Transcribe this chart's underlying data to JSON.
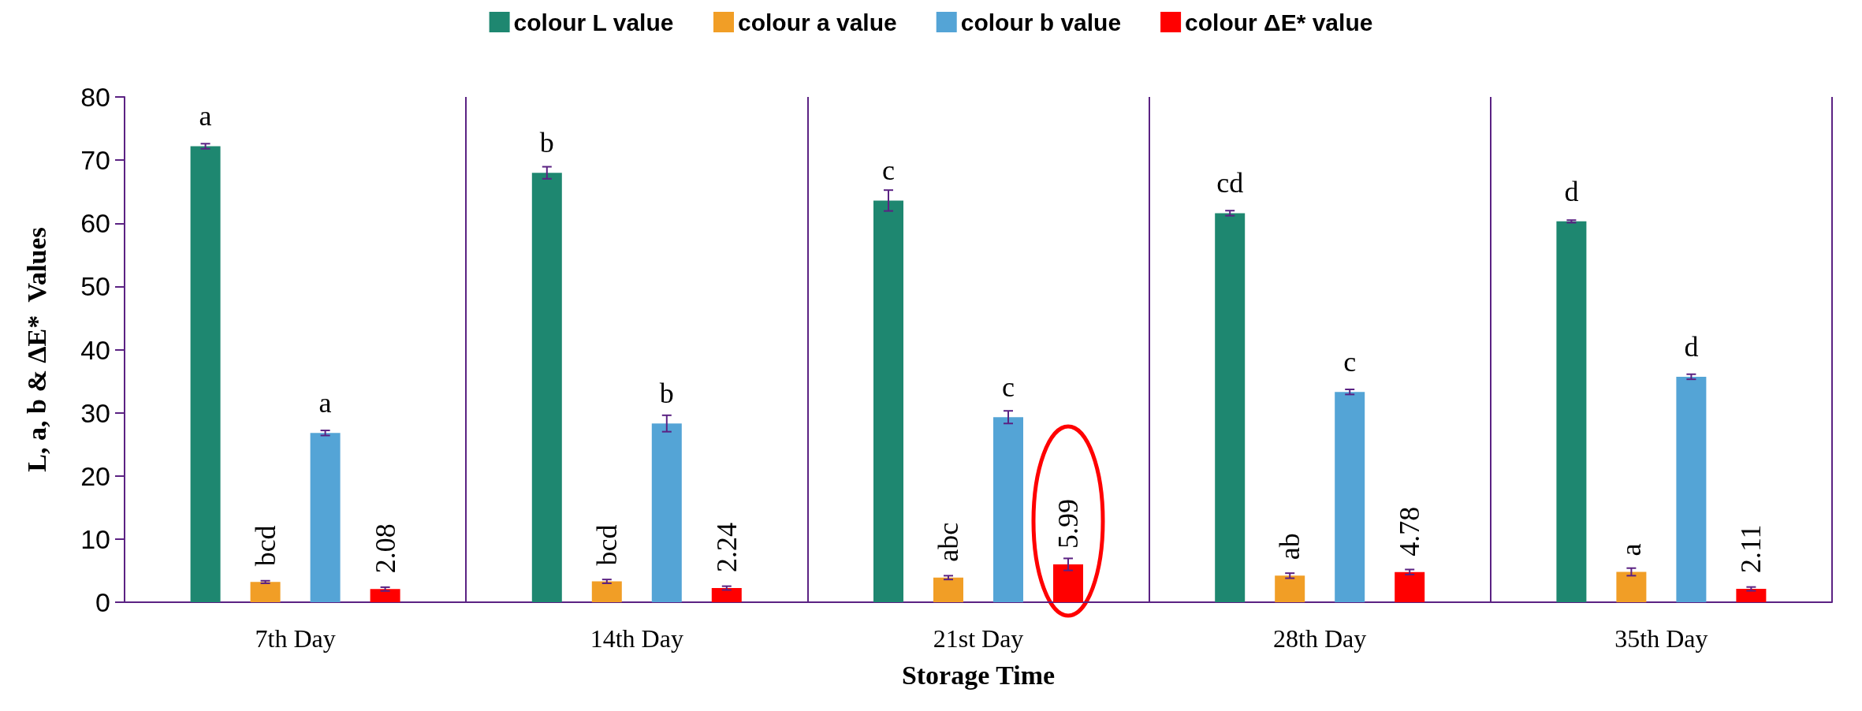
{
  "chart_data": {
    "type": "bar",
    "xlabel": "Storage Time",
    "ylabel": "L, a, b & ΔE*  Values",
    "categories": [
      "7th Day",
      "14th Day",
      "21st Day",
      "28th Day",
      "35th Day"
    ],
    "series": [
      {
        "name": "colour L value",
        "color": "#1e8770",
        "values": [
          72.2,
          68.0,
          63.6,
          61.6,
          60.3
        ],
        "errors": [
          0.4,
          0.95,
          1.65,
          0.4,
          0.2
        ],
        "value_labels": [
          "a",
          "b",
          "c",
          "cd",
          "d"
        ]
      },
      {
        "name": "colour a value",
        "color": "#f19e26",
        "values": [
          3.2,
          3.3,
          3.9,
          4.2,
          4.8
        ],
        "errors": [
          0.2,
          0.3,
          0.3,
          0.4,
          0.6
        ],
        "value_labels": [
          "bcd",
          "bcd",
          "abc",
          "ab",
          "a"
        ]
      },
      {
        "name": "colour b value",
        "color": "#54a4d6",
        "values": [
          26.8,
          28.3,
          29.3,
          33.3,
          35.7
        ],
        "errors": [
          0.4,
          1.3,
          1.0,
          0.4,
          0.4
        ],
        "value_labels": [
          "a",
          "b",
          "c",
          "c",
          "d"
        ]
      },
      {
        "name": "colour ΔE* value",
        "color": "#ff0000",
        "values": [
          2.08,
          2.24,
          5.99,
          4.78,
          2.11
        ],
        "errors": [
          0.3,
          0.3,
          0.95,
          0.4,
          0.3
        ],
        "value_labels": [
          "2.08",
          "2.24",
          "5.99",
          "4.78",
          "2.11"
        ]
      }
    ],
    "ylim": [
      0,
      80
    ],
    "yticks": [
      0,
      10,
      20,
      30,
      40,
      50,
      60,
      70,
      80
    ],
    "grid": "x",
    "legend": "top"
  }
}
